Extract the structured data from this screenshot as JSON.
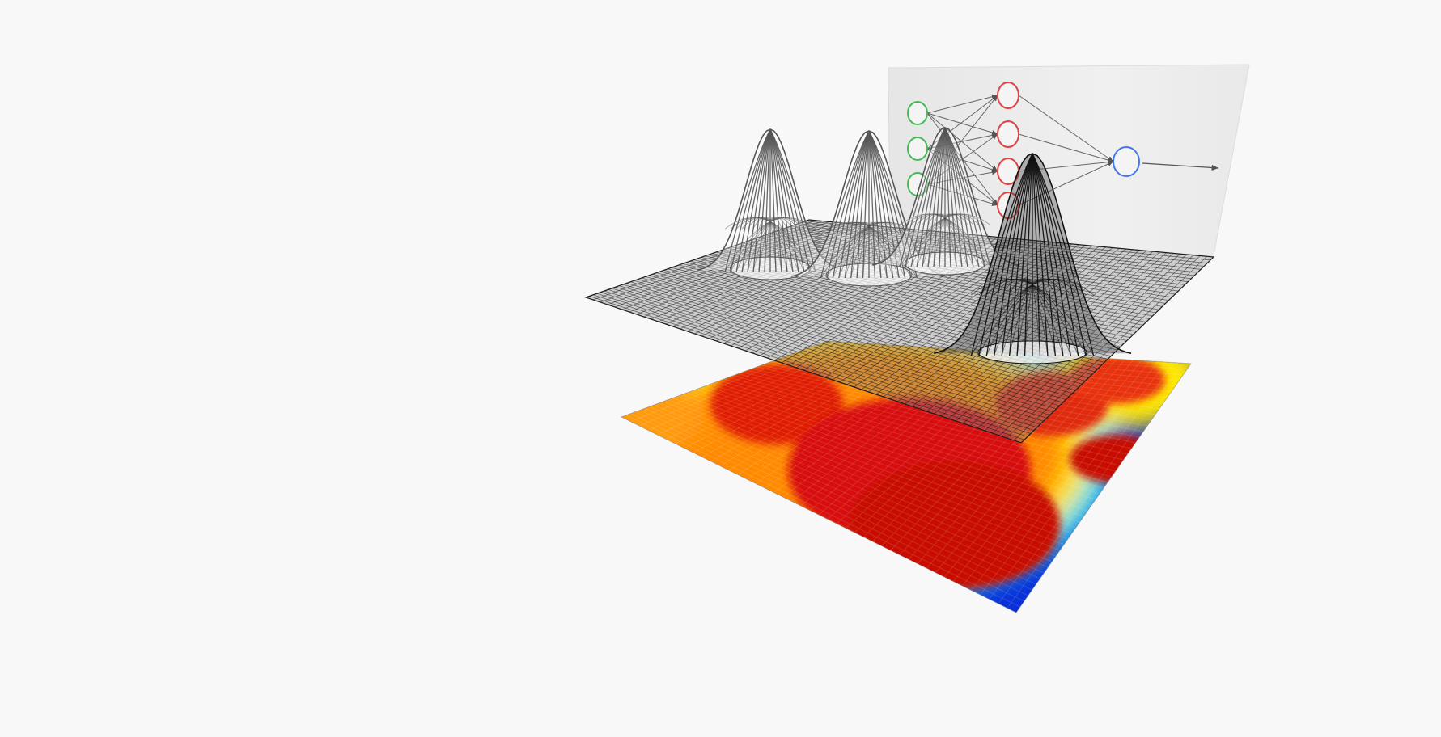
{
  "scene": {
    "background": "#f8f8f8",
    "layers": [
      {
        "name": "neural-network-panel",
        "panel_color": "#eeeeee"
      },
      {
        "name": "wireframe-mesh-surface",
        "line_color": "#1a1a1a",
        "peak_count": 4
      },
      {
        "name": "heatmap-surface",
        "colormap": [
          "#000099",
          "#0033ff",
          "#00ffff",
          "#ffff00",
          "#ff8800",
          "#dd1100",
          "#c40000"
        ]
      }
    ],
    "network": {
      "input_color": "#44bb55",
      "hidden_color": "#dd4444",
      "output_color": "#4477ee",
      "input_nodes": 3,
      "hidden_nodes": 4,
      "output_nodes": 1
    }
  }
}
